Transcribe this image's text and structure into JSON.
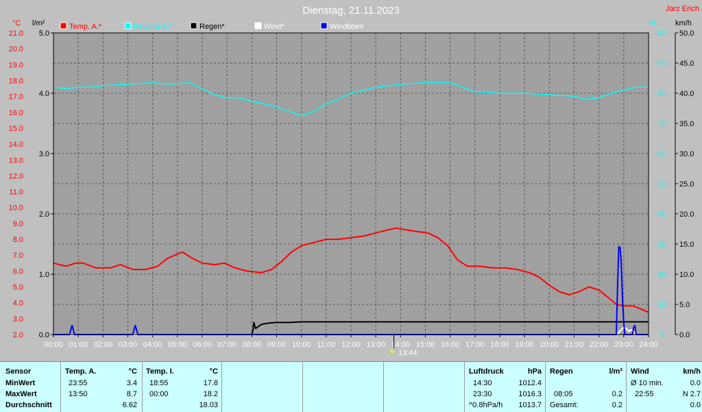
{
  "title": "Dienstag, 21.11.2023",
  "author": "Jarz Erich",
  "units": {
    "temp": "°C",
    "rain": "l/m²",
    "humidity": "%",
    "wind": "km/h"
  },
  "legend": [
    {
      "label": "Temp. A.*",
      "color": "#ff0000"
    },
    {
      "label": "Feuchte A.*",
      "color": "#00ffff"
    },
    {
      "label": "Regen*",
      "color": "#000000"
    },
    {
      "label": "Wind*",
      "color": "#ffffff"
    },
    {
      "label": "Windböen",
      "color": "#0000ff"
    }
  ],
  "time_marker": "13:44",
  "chart_data": {
    "type": "line",
    "title": "Dienstag, 21.11.2023",
    "x_ticks": [
      "00:00",
      "01:00",
      "02:00",
      "03:00",
      "04:00",
      "05:00",
      "06:00",
      "07:00",
      "08:00",
      "09:00",
      "10:00",
      "11:00",
      "12:00",
      "13:00",
      "14:00",
      "15:00",
      "16:00",
      "17:00",
      "18:00",
      "19:00",
      "20:00",
      "21:00",
      "22:00",
      "23:00",
      "24:00"
    ],
    "y_temp_ticks": [
      "2.0",
      "3.0",
      "4.0",
      "5.0",
      "6.0",
      "7.0",
      "8.0",
      "9.0",
      "10.0",
      "11.0",
      "12.0",
      "13.0",
      "14.0",
      "15.0",
      "16.0",
      "17.0",
      "18.0",
      "19.0",
      "20.0",
      "21.0"
    ],
    "y_rain_ticks": [
      "0.0",
      "1.0",
      "2.0",
      "3.0",
      "4.0",
      "5.0"
    ],
    "y_hum_ticks": [
      "0",
      "10",
      "20",
      "30",
      "40",
      "50",
      "60",
      "70",
      "80",
      "90",
      "100"
    ],
    "y_wind_ticks": [
      "0.0",
      "5.0",
      "10.0",
      "15.0",
      "20.0",
      "25.0",
      "30.0",
      "35.0",
      "40.0",
      "45.0",
      "50.0"
    ],
    "temp_range": [
      2.0,
      21.0
    ],
    "rain_range": [
      0,
      5
    ],
    "hum_range": [
      0,
      100
    ],
    "wind_range": [
      0,
      50
    ],
    "series": [
      {
        "name": "Temp. A.*",
        "color": "#ff0000",
        "axis": "temp",
        "x": [
          0,
          0.5,
          0.9,
          1.2,
          1.7,
          2.3,
          2.7,
          3.2,
          3.7,
          4.2,
          4.6,
          4.9,
          5.2,
          5.6,
          6.0,
          6.5,
          6.9,
          7.3,
          7.8,
          8.4,
          8.8,
          9.2,
          9.6,
          10.0,
          10.5,
          11.0,
          11.5,
          12.0,
          12.5,
          13.0,
          13.5,
          13.83,
          14.2,
          14.6,
          15.1,
          15.5,
          15.9,
          16.3,
          16.7,
          17.2,
          17.7,
          18.2,
          18.7,
          19.2,
          19.6,
          20.0,
          20.4,
          20.8,
          21.2,
          21.6,
          22.0,
          22.4,
          22.7,
          23.0,
          23.4,
          23.7,
          24.0
        ],
        "y": [
          6.5,
          6.3,
          6.5,
          6.5,
          6.2,
          6.2,
          6.4,
          6.1,
          6.1,
          6.3,
          6.8,
          7.0,
          7.2,
          6.8,
          6.5,
          6.4,
          6.5,
          6.2,
          6.0,
          5.9,
          6.1,
          6.6,
          7.2,
          7.6,
          7.8,
          8.0,
          8.0,
          8.1,
          8.2,
          8.4,
          8.6,
          8.7,
          8.6,
          8.5,
          8.4,
          8.1,
          7.6,
          6.7,
          6.3,
          6.3,
          6.2,
          6.2,
          6.1,
          5.9,
          5.6,
          5.1,
          4.7,
          4.5,
          4.7,
          5.0,
          4.8,
          4.3,
          3.9,
          3.8,
          3.8,
          3.6,
          3.4
        ]
      },
      {
        "name": "Feuchte A.*",
        "color": "#00ffff",
        "axis": "hum",
        "x": [
          0,
          0.5,
          1.0,
          1.5,
          2.0,
          3.0,
          4.0,
          4.7,
          5.5,
          6.0,
          6.5,
          7.0,
          7.5,
          8.0,
          8.5,
          9.0,
          9.5,
          10.0,
          10.5,
          11.0,
          11.5,
          12.0,
          12.5,
          13.0,
          14.0,
          15.0,
          16.0,
          16.5,
          17.0,
          18.0,
          19.0,
          20.0,
          21.0,
          21.5,
          22.0,
          22.5,
          23.0,
          23.5,
          24.0
        ],
        "y": [
          82,
          81.5,
          82,
          82,
          82.5,
          83,
          83.5,
          83,
          83.5,
          81.5,
          79.5,
          78.5,
          78.5,
          77.3,
          76.5,
          75.5,
          74,
          72.5,
          74,
          76.5,
          78,
          80,
          81,
          82,
          83,
          83.5,
          83.5,
          82,
          80.5,
          80,
          80,
          79.5,
          79,
          78,
          78.5,
          80,
          81,
          82,
          82
        ]
      },
      {
        "name": "Regen*",
        "color": "#000000",
        "axis": "rain",
        "x": [
          0,
          8.0,
          8.05,
          8.08,
          8.15,
          8.25,
          8.4,
          8.7,
          9.0,
          9.5,
          10.0,
          12.0,
          24.0
        ],
        "y": [
          0,
          0,
          0.08,
          0.2,
          0.1,
          0.13,
          0.17,
          0.19,
          0.2,
          0.2,
          0.21,
          0.21,
          0.21
        ]
      },
      {
        "name": "Wind*",
        "color": "#ffffff",
        "axis": "wind",
        "x": [
          0,
          22.7,
          22.8,
          22.9,
          23.0,
          23.1,
          23.2,
          23.3,
          23.4,
          23.5,
          24.0
        ],
        "y": [
          0,
          0,
          0.3,
          0.8,
          1.2,
          1.0,
          0.5,
          0.8,
          0.4,
          0,
          0
        ]
      },
      {
        "name": "Windböen",
        "color": "#0000ff",
        "axis": "wind",
        "x": [
          0,
          0.65,
          0.7,
          0.75,
          0.8,
          0.85,
          3.2,
          3.25,
          3.3,
          3.35,
          3.4,
          22.7,
          22.75,
          22.8,
          22.85,
          22.9,
          22.95,
          23.0,
          23.05,
          23.1,
          23.35,
          23.4,
          23.45,
          23.5,
          24.0
        ],
        "y": [
          0,
          0,
          0.8,
          1.5,
          0.8,
          0,
          0,
          0.8,
          1.5,
          0.8,
          0,
          0,
          8,
          14.5,
          14.5,
          12,
          6,
          2,
          0,
          0,
          0,
          1.2,
          1.5,
          0,
          0
        ]
      }
    ]
  },
  "table": {
    "sensor_header": "Sensor",
    "row_labels": [
      "MinWert",
      "MaxWert",
      "Durchschnitt"
    ],
    "temp_a": {
      "header": "Temp. A.",
      "unit": "°C",
      "times": [
        "23:55",
        "13:50",
        ""
      ],
      "values": [
        "3.4",
        "8.7",
        "6.62"
      ]
    },
    "temp_i": {
      "header": "Temp. I.",
      "unit": "°C",
      "times": [
        "18:55",
        "00:00",
        ""
      ],
      "values": [
        "17.8",
        "18.2",
        "18.03"
      ]
    },
    "pressure": {
      "header": "Luftdruck",
      "unit": "hPa",
      "times": [
        "14:30",
        "23:30",
        "^0.8hPa/h"
      ],
      "values": [
        "1012.4",
        "1016.3",
        "1013.7"
      ]
    },
    "rain": {
      "header": "Regen",
      "unit": "l/m²",
      "times": [
        "",
        "08:05",
        "Gesamt:"
      ],
      "values": [
        "",
        "0.2",
        "0.2"
      ]
    },
    "wind": {
      "header": "Wind",
      "unit": "km/h",
      "times": [
        "Ø 10 min.",
        "22:55",
        ""
      ],
      "values": [
        "0.0",
        "N 2.7",
        "0.0"
      ]
    }
  }
}
